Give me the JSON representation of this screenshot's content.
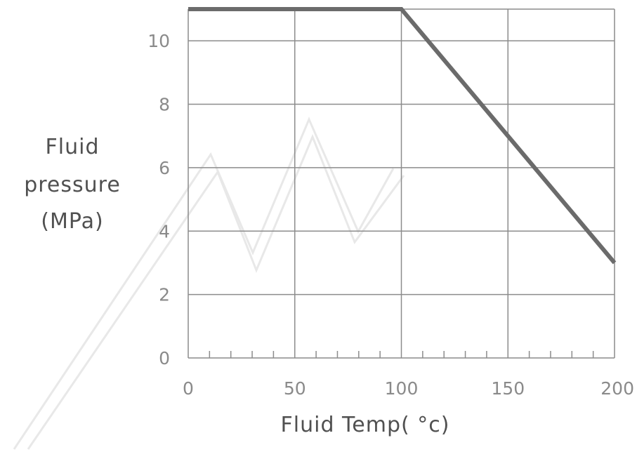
{
  "chart_data": {
    "type": "line",
    "title": "",
    "xlabel": "Fluid Temp( °c)",
    "ylabel_lines": [
      "Fluid",
      "pressure",
      "(MPa)"
    ],
    "xlim": [
      0,
      200
    ],
    "ylim": [
      0,
      11
    ],
    "x_ticks": [
      0,
      50,
      100,
      150,
      200
    ],
    "y_ticks": [
      0,
      2,
      4,
      6,
      8,
      10
    ],
    "x_minor_step": 10,
    "grid": true,
    "series": [
      {
        "x": [
          0,
          100,
          200
        ],
        "y": [
          11,
          11,
          3
        ],
        "color": "#6b6b6b"
      }
    ]
  }
}
